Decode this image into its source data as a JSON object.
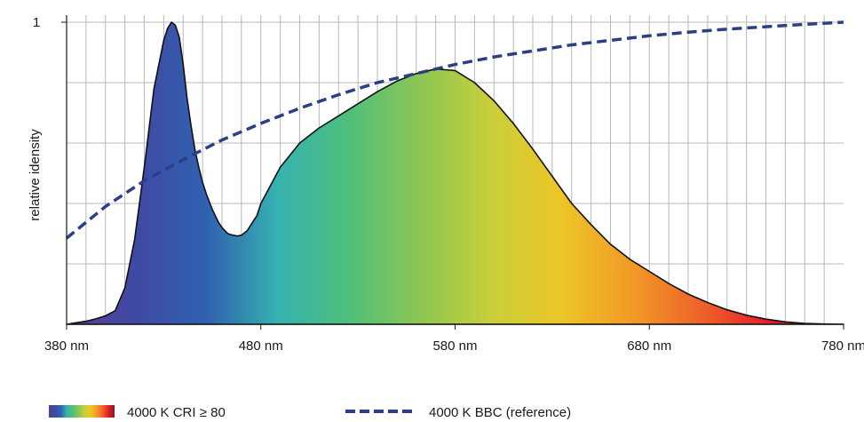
{
  "chart_data": {
    "type": "area",
    "ylabel": "relative idensity",
    "xlim": [
      380,
      780
    ],
    "ylim": [
      0,
      1
    ],
    "x_ticks": [
      {
        "value": 380,
        "label": "380 nm"
      },
      {
        "value": 480,
        "label": "480 nm"
      },
      {
        "value": 580,
        "label": "580 nm"
      },
      {
        "value": 680,
        "label": "680 nm"
      },
      {
        "value": 780,
        "label": "780 nm"
      }
    ],
    "y_ticks": [
      {
        "value": 1,
        "label": "1"
      }
    ],
    "y_grid": [
      0.2,
      0.4,
      0.6,
      0.8,
      1.0
    ],
    "x_grid_step": 10,
    "series": [
      {
        "name": "4000 K CRI ≥ 80",
        "style": "spectrum-fill",
        "x": [
          380,
          390,
          395,
          400,
          405,
          410,
          415,
          420,
          425,
          430,
          432,
          434,
          436,
          438,
          440,
          442,
          444,
          446,
          448,
          450,
          452,
          455,
          458,
          460,
          463,
          465,
          468,
          470,
          473,
          475,
          478,
          480,
          485,
          490,
          495,
          500,
          505,
          510,
          520,
          530,
          540,
          550,
          560,
          570,
          580,
          590,
          600,
          610,
          620,
          630,
          640,
          650,
          660,
          670,
          680,
          690,
          700,
          710,
          720,
          730,
          740,
          750,
          760,
          770,
          780
        ],
        "y": [
          0.0,
          0.01,
          0.018,
          0.028,
          0.045,
          0.12,
          0.28,
          0.52,
          0.78,
          0.94,
          0.98,
          1.0,
          0.99,
          0.95,
          0.86,
          0.75,
          0.66,
          0.58,
          0.52,
          0.47,
          0.43,
          0.38,
          0.34,
          0.32,
          0.3,
          0.296,
          0.292,
          0.295,
          0.31,
          0.33,
          0.36,
          0.4,
          0.46,
          0.52,
          0.56,
          0.6,
          0.625,
          0.65,
          0.69,
          0.73,
          0.77,
          0.805,
          0.83,
          0.845,
          0.84,
          0.8,
          0.74,
          0.665,
          0.58,
          0.49,
          0.4,
          0.33,
          0.265,
          0.215,
          0.175,
          0.135,
          0.1,
          0.072,
          0.048,
          0.03,
          0.017,
          0.008,
          0.003,
          0.001,
          0.0
        ]
      },
      {
        "name": "4000 K BBC (reference)",
        "style": "dashed",
        "color": "#2b3f86",
        "x": [
          380,
          400,
          420,
          440,
          460,
          480,
          500,
          520,
          540,
          560,
          580,
          600,
          620,
          640,
          660,
          680,
          700,
          720,
          740,
          760,
          780
        ],
        "y": [
          0.285,
          0.39,
          0.475,
          0.545,
          0.61,
          0.665,
          0.715,
          0.76,
          0.8,
          0.83,
          0.86,
          0.885,
          0.905,
          0.925,
          0.94,
          0.955,
          0.967,
          0.977,
          0.985,
          0.993,
          1.0
        ]
      }
    ],
    "legend": {
      "placement": "bottom",
      "items": [
        {
          "label": "4000 K CRI ≥ 80",
          "symbol": "spectrum-swatch"
        },
        {
          "label": "4000 K BBC (reference)",
          "symbol": "dashed-line"
        }
      ]
    },
    "colors": {
      "grid": "#b8b8b8",
      "axis": "#1a1a1a",
      "reference_line": "#2b3f86",
      "spectrum_stops": [
        "#5a3d96",
        "#3f4aa3",
        "#2f62b0",
        "#36b2b0",
        "#4fbf7a",
        "#8cc653",
        "#c8cf3a",
        "#ecc627",
        "#f29a26",
        "#ee6229",
        "#e8182a",
        "#7a1e22"
      ]
    }
  }
}
